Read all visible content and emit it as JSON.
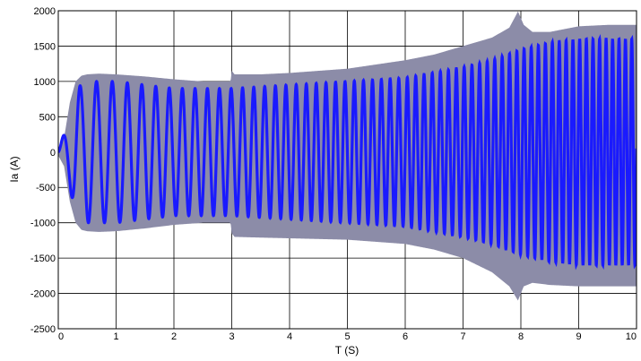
{
  "chart_data": {
    "type": "line",
    "title": "",
    "xlabel": "T (S)",
    "ylabel": "Ia (A)",
    "xlim": [
      0,
      10
    ],
    "ylim": [
      -2500,
      2000
    ],
    "xticks": [
      0,
      1,
      2,
      3,
      4,
      5,
      6,
      7,
      8,
      9,
      10
    ],
    "yticks": [
      2000,
      1500,
      1000,
      500,
      0,
      -500,
      -1000,
      -1500,
      -2000,
      -2500
    ],
    "xtick_labels": [
      "0",
      "1",
      "2",
      "3",
      "4",
      "5",
      "6",
      "7",
      "8",
      "9",
      "10"
    ],
    "ytick_labels": [
      "2000",
      "1500",
      "1000",
      "500",
      "0",
      "-500",
      "-1000",
      "-1500",
      "-2000",
      "-2500"
    ],
    "grid": true,
    "legend": "none",
    "colors": {
      "wave": "#1a1aff",
      "envelope": "#8c8ca8",
      "grid": "#000000"
    },
    "series": [
      {
        "style": "oscillating",
        "envelope_upper": {
          "t": [
            0,
            0.1,
            0.2,
            0.3,
            0.4,
            0.5,
            0.7,
            1,
            1.5,
            2,
            2.5,
            2.98,
            3.0,
            3.05,
            3.5,
            4,
            5,
            6,
            6.5,
            7,
            7.5,
            7.8,
            7.95,
            8.05,
            8.2,
            8.5,
            9,
            9.5,
            10
          ],
          "value": [
            50,
            200,
            700,
            1000,
            1080,
            1100,
            1110,
            1100,
            1070,
            1030,
            1000,
            1000,
            1150,
            1100,
            1100,
            1120,
            1180,
            1300,
            1380,
            1500,
            1620,
            1760,
            1990,
            1800,
            1700,
            1700,
            1780,
            1800,
            1800
          ]
        },
        "envelope_lower": {
          "t": [
            0,
            0.1,
            0.2,
            0.3,
            0.4,
            0.5,
            0.7,
            1,
            1.5,
            2,
            2.5,
            2.98,
            3.0,
            3.05,
            3.5,
            4,
            5,
            6,
            6.5,
            7,
            7.5,
            7.8,
            7.95,
            8.05,
            8.2,
            8.5,
            9,
            9.5,
            10
          ],
          "value": [
            -50,
            -200,
            -700,
            -1000,
            -1100,
            -1120,
            -1130,
            -1120,
            -1080,
            -1030,
            -1000,
            -1000,
            -1150,
            -1200,
            -1210,
            -1220,
            -1240,
            -1300,
            -1380,
            -1500,
            -1700,
            -1900,
            -2100,
            -1900,
            -1850,
            -1880,
            -1900,
            -1900,
            -1900
          ]
        },
        "inner_wave": {
          "t": [
            0,
            0.2,
            0.3,
            0.5,
            1,
            2,
            3,
            4,
            5,
            6,
            7,
            7.5,
            8,
            8.5,
            9,
            10
          ],
          "value": [
            30,
            500,
            900,
            1000,
            1000,
            900,
            900,
            950,
            1000,
            1050,
            1200,
            1300,
            1450,
            1550,
            1600,
            1600
          ]
        }
      }
    ]
  }
}
